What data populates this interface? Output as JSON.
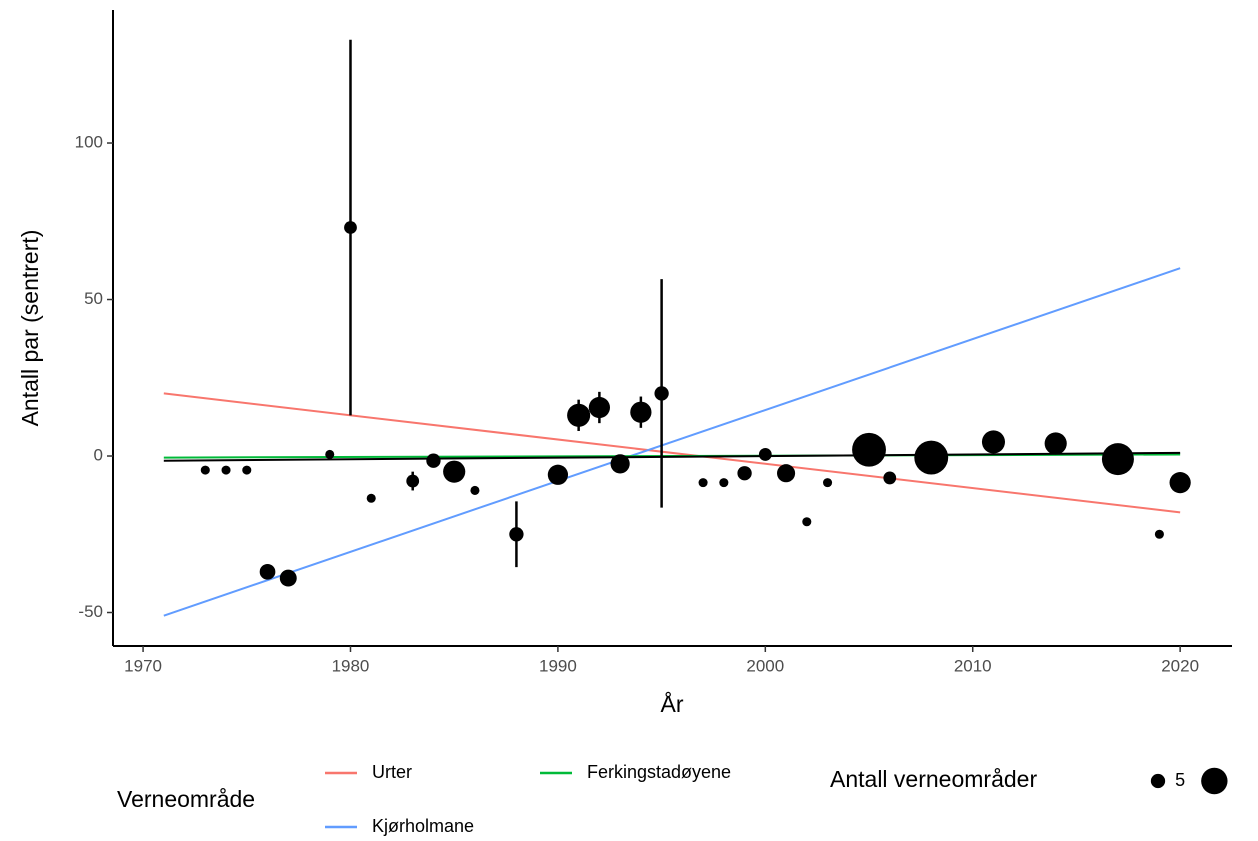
{
  "chart_data": {
    "type": "scatter",
    "x_label": "År",
    "y_label": "Antall par (sentrert)",
    "x": [
      1973,
      1974,
      1975,
      1976,
      1977,
      1979,
      1980,
      1981,
      1983,
      1984,
      1985,
      1986,
      1988,
      1990,
      1991,
      1992,
      1993,
      1994,
      1995,
      1997,
      1998,
      1999,
      2000,
      2001,
      2002,
      2003,
      2005,
      2006,
      2008,
      2011,
      2014,
      2017,
      2019,
      2020
    ],
    "values": [
      -4.5,
      -4.5,
      -4.5,
      -37,
      -39,
      0.5,
      73,
      -13.5,
      -8,
      -1.5,
      -5,
      -11,
      -25,
      -6,
      13,
      15.5,
      -2.5,
      14,
      20,
      -8.5,
      -8.5,
      -5.5,
      0.5,
      -5.5,
      -21,
      -8.5,
      2,
      -7,
      -0.5,
      4.5,
      4,
      -1,
      -25,
      -8.5
    ],
    "sizes": [
      2,
      2,
      2,
      6,
      7,
      2,
      4,
      2,
      4,
      5,
      12,
      2,
      5,
      10,
      13,
      11,
      9,
      11,
      5,
      2,
      2,
      5,
      4,
      8,
      2,
      2,
      28,
      4,
      28,
      13,
      12,
      25,
      2,
      11
    ],
    "errors": [
      null,
      null,
      null,
      null,
      null,
      null,
      60,
      null,
      3,
      null,
      null,
      null,
      10.5,
      null,
      5,
      5,
      null,
      5,
      36.5,
      null,
      null,
      null,
      null,
      null,
      null,
      null,
      null,
      null,
      null,
      null,
      null,
      null,
      null,
      null
    ],
    "color": "#000000",
    "lines": [
      {
        "name": "Urter",
        "color": "#F8766D",
        "x": [
          1971,
          2020
        ],
        "values": [
          20,
          -18
        ]
      },
      {
        "name": "Kjørholmane",
        "color": "#619CFF",
        "x": [
          1971,
          2020
        ],
        "values": [
          -51,
          60
        ]
      },
      {
        "name": "Ferkingstadøyene",
        "color": "#00BA38",
        "x": [
          1971,
          2020
        ],
        "values": [
          -0.5,
          0.5
        ]
      },
      {
        "color": "#000000",
        "x": [
          1971,
          2020
        ],
        "values": [
          -1.5,
          1
        ]
      }
    ],
    "xlim": [
      1968.55,
      2022.5
    ],
    "xticks": [
      1970,
      1980,
      1990,
      2000,
      2010,
      2020
    ],
    "ylim": [
      -60.7,
      142.5
    ],
    "yticks": [
      -50,
      0,
      50,
      100
    ],
    "legend_title": "Verneområde",
    "size_legend_title": "Antall verneområder",
    "size_legend": [
      5,
      {
        "value": 17,
        "label": null
      }
    ]
  }
}
